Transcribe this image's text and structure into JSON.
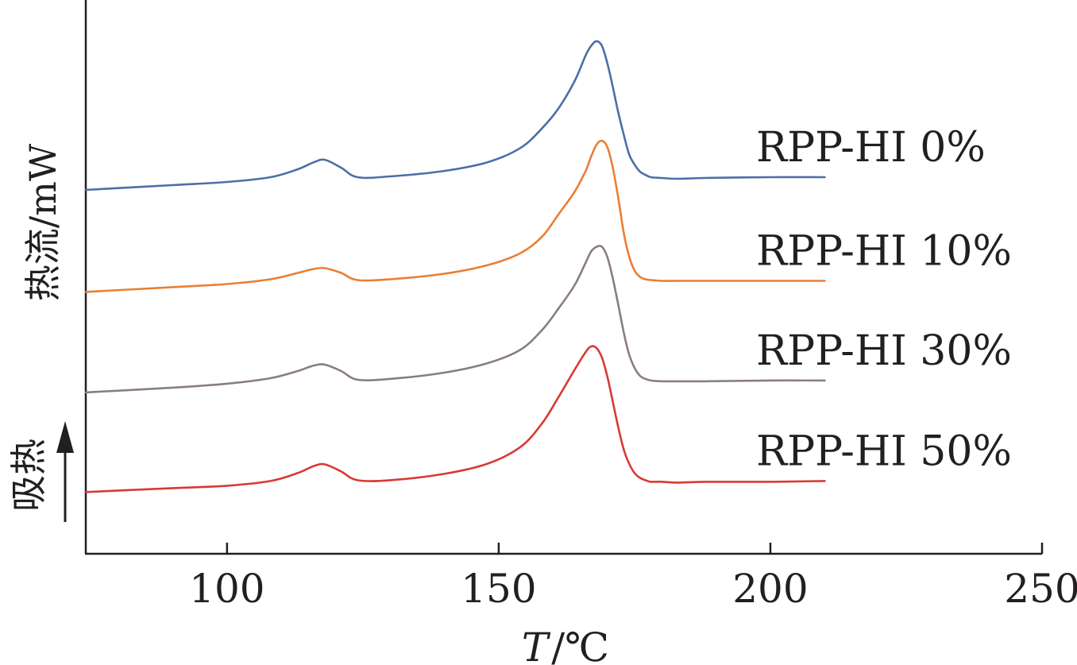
{
  "chart_data": {
    "type": "line",
    "xlabel_var": "T",
    "xlabel_unit": "/℃",
    "ylabel": "热流/mW",
    "endo_label": "吸热",
    "xlim": [
      74,
      250
    ],
    "ylim": [
      0,
      7
    ],
    "x_ticks": [
      100,
      150,
      200,
      250
    ],
    "x_tick_labels": [
      "100",
      "150",
      "200",
      "250"
    ],
    "grid": false,
    "legend_placement": "right, beside each curve",
    "series": [
      {
        "name": "RPP-HI 0%",
        "color": "#4e6ea6",
        "x": [
          74,
          90,
          100,
          108,
          113,
          116,
          118,
          121,
          124,
          130,
          140,
          148,
          154,
          158,
          161,
          164,
          166,
          167,
          168,
          169,
          170,
          171,
          172,
          173,
          174,
          175,
          176,
          177,
          178,
          180,
          183,
          188,
          200,
          210
        ],
        "y": [
          4.6,
          4.66,
          4.7,
          4.76,
          4.86,
          4.95,
          4.98,
          4.88,
          4.76,
          4.77,
          4.84,
          4.95,
          5.13,
          5.38,
          5.63,
          5.98,
          6.3,
          6.42,
          6.48,
          6.42,
          6.2,
          5.9,
          5.58,
          5.3,
          5.05,
          4.92,
          4.83,
          4.79,
          4.76,
          4.75,
          4.74,
          4.75,
          4.76,
          4.76
        ]
      },
      {
        "name": "RPP-HI 10%",
        "color": "#ea7e34",
        "x": [
          74,
          90,
          100,
          108,
          113,
          116,
          118,
          121,
          124,
          130,
          140,
          148,
          154,
          158,
          161,
          164,
          166,
          167,
          168,
          169,
          170,
          171,
          172,
          173,
          174,
          175,
          176,
          177,
          178,
          180,
          183,
          188,
          200,
          210
        ],
        "y": [
          3.31,
          3.37,
          3.41,
          3.47,
          3.55,
          3.6,
          3.61,
          3.55,
          3.46,
          3.47,
          3.54,
          3.65,
          3.8,
          4.01,
          4.29,
          4.58,
          4.84,
          5.02,
          5.17,
          5.22,
          5.14,
          4.88,
          4.5,
          4.06,
          3.76,
          3.58,
          3.5,
          3.47,
          3.46,
          3.45,
          3.45,
          3.45,
          3.45,
          3.45
        ]
      },
      {
        "name": "RPP-HI 30%",
        "color": "#8a7e7c",
        "x": [
          74,
          90,
          100,
          108,
          113,
          116,
          118,
          121,
          124,
          130,
          140,
          148,
          154,
          158,
          161,
          164,
          166,
          167,
          168,
          169,
          170,
          171,
          172,
          173,
          174,
          175,
          176,
          177,
          178,
          180,
          183,
          188,
          200,
          210
        ],
        "y": [
          2.04,
          2.1,
          2.15,
          2.22,
          2.31,
          2.38,
          2.39,
          2.31,
          2.2,
          2.21,
          2.29,
          2.41,
          2.58,
          2.83,
          3.1,
          3.4,
          3.68,
          3.82,
          3.88,
          3.88,
          3.75,
          3.48,
          3.15,
          2.8,
          2.52,
          2.35,
          2.25,
          2.21,
          2.19,
          2.18,
          2.18,
          2.18,
          2.19,
          2.19
        ]
      },
      {
        "name": "RPP-HI 50%",
        "color": "#d83a33",
        "x": [
          74,
          90,
          100,
          108,
          113,
          116,
          118,
          121,
          124,
          130,
          140,
          148,
          154,
          158,
          161,
          164,
          166,
          167,
          168,
          169,
          170,
          171,
          172,
          173,
          174,
          175,
          176,
          177,
          178,
          180,
          183,
          188,
          200,
          210
        ],
        "y": [
          0.78,
          0.83,
          0.86,
          0.92,
          1.02,
          1.11,
          1.13,
          1.04,
          0.93,
          0.93,
          1.01,
          1.14,
          1.35,
          1.65,
          1.98,
          2.33,
          2.55,
          2.62,
          2.6,
          2.48,
          2.24,
          1.92,
          1.6,
          1.32,
          1.14,
          1.02,
          0.96,
          0.93,
          0.91,
          0.91,
          0.9,
          0.91,
          0.91,
          0.92
        ]
      }
    ]
  }
}
